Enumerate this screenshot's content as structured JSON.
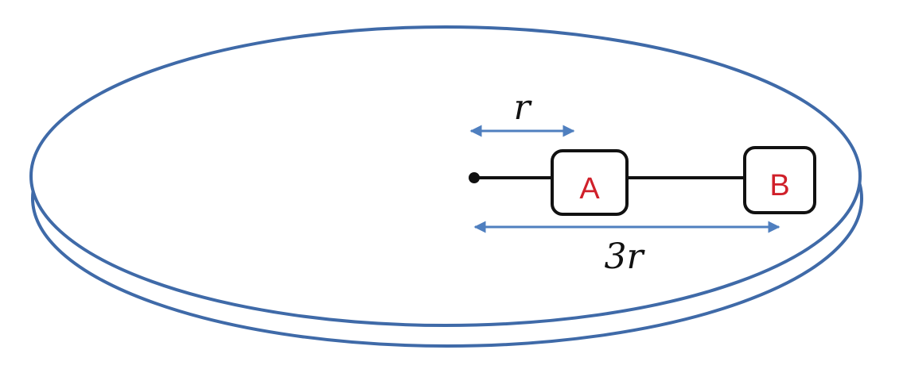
{
  "diagram": {
    "labels": {
      "r": "r",
      "three_r": "3r"
    },
    "blocks": {
      "a": "A",
      "b": "B"
    },
    "colors": {
      "disk_stroke": "#3f6aa8",
      "arrow": "#4f7fbf",
      "block_text": "#d0202a",
      "rod": "#111111"
    }
  }
}
